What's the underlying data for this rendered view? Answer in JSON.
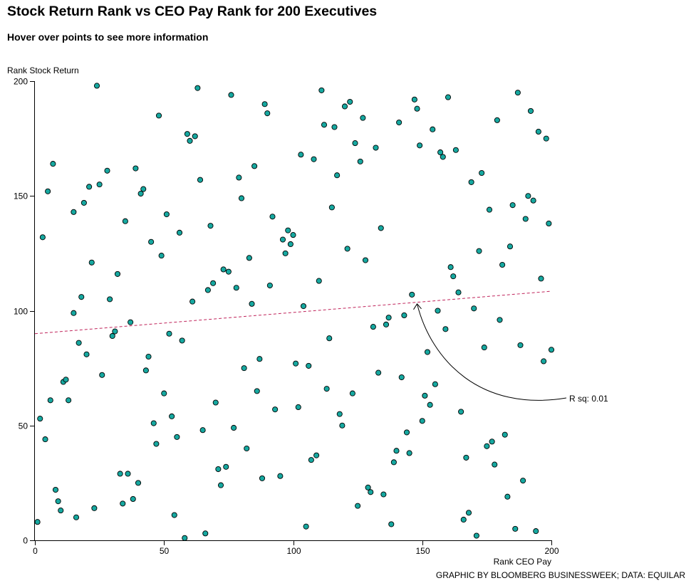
{
  "page": {
    "title": "Stock Return Rank vs CEO Pay Rank for 200 Executives",
    "subtitle": "Hover over points to see more information",
    "credit": "GRAPHIC BY BLOOMBERG BUSINESSWEEK; DATA: EQUILAR"
  },
  "colors": {
    "point_fill": "#16a8a0",
    "point_stroke": "#000000",
    "trend_line": "#c0245b"
  },
  "chart_data": {
    "type": "scatter",
    "title": "Stock Return Rank vs CEO Pay Rank for 200 Executives",
    "xlabel": "Rank CEO Pay",
    "ylabel": "Rank Stock Return",
    "xlim": [
      0,
      200
    ],
    "ylim": [
      0,
      200
    ],
    "x_ticks": [
      0,
      50,
      100,
      150,
      200
    ],
    "y_ticks": [
      0,
      50,
      100,
      150,
      200
    ],
    "grid": false,
    "trend_line": {
      "points": [
        [
          0,
          90
        ],
        [
          200,
          108.5
        ]
      ],
      "style": "dashed"
    },
    "annotation": {
      "label": "R sq: 0.01",
      "points_to": [
        148,
        103
      ]
    },
    "series": [
      {
        "name": "Executives",
        "points": [
          [
            1,
            8
          ],
          [
            2,
            53
          ],
          [
            3,
            132
          ],
          [
            4,
            44
          ],
          [
            5,
            152
          ],
          [
            6,
            61
          ],
          [
            7,
            164
          ],
          [
            8,
            22
          ],
          [
            9,
            17
          ],
          [
            10,
            13
          ],
          [
            11,
            69
          ],
          [
            12,
            70
          ],
          [
            13,
            61
          ],
          [
            15,
            143
          ],
          [
            15,
            99
          ],
          [
            16,
            10
          ],
          [
            17,
            86
          ],
          [
            18,
            106
          ],
          [
            19,
            147
          ],
          [
            20,
            81
          ],
          [
            21,
            154
          ],
          [
            22,
            121
          ],
          [
            23,
            14
          ],
          [
            24,
            198
          ],
          [
            25,
            155
          ],
          [
            26,
            72
          ],
          [
            28,
            161
          ],
          [
            29,
            105
          ],
          [
            30,
            89
          ],
          [
            31,
            91
          ],
          [
            32,
            116
          ],
          [
            33,
            29
          ],
          [
            34,
            16
          ],
          [
            35,
            139
          ],
          [
            36,
            29
          ],
          [
            37,
            95
          ],
          [
            38,
            18
          ],
          [
            39,
            162
          ],
          [
            40,
            25
          ],
          [
            41,
            151
          ],
          [
            42,
            153
          ],
          [
            43,
            74
          ],
          [
            44,
            80
          ],
          [
            45,
            130
          ],
          [
            46,
            51
          ],
          [
            47,
            42
          ],
          [
            48,
            185
          ],
          [
            49,
            124
          ],
          [
            50,
            64
          ],
          [
            51,
            142
          ],
          [
            52,
            90
          ],
          [
            53,
            54
          ],
          [
            54,
            11
          ],
          [
            55,
            45
          ],
          [
            56,
            134
          ],
          [
            57,
            87
          ],
          [
            58,
            1
          ],
          [
            59,
            177
          ],
          [
            60,
            174
          ],
          [
            61,
            104
          ],
          [
            62,
            176
          ],
          [
            63,
            197
          ],
          [
            64,
            157
          ],
          [
            65,
            48
          ],
          [
            66,
            3
          ],
          [
            67,
            109
          ],
          [
            68,
            137
          ],
          [
            69,
            112
          ],
          [
            70,
            60
          ],
          [
            71,
            31
          ],
          [
            72,
            24
          ],
          [
            73,
            118
          ],
          [
            74,
            32
          ],
          [
            75,
            117
          ],
          [
            76,
            194
          ],
          [
            77,
            49
          ],
          [
            78,
            110
          ],
          [
            79,
            158
          ],
          [
            80,
            149
          ],
          [
            81,
            75
          ],
          [
            82,
            40
          ],
          [
            83,
            123
          ],
          [
            84,
            103
          ],
          [
            85,
            163
          ],
          [
            86,
            65
          ],
          [
            87,
            79
          ],
          [
            88,
            27
          ],
          [
            89,
            190
          ],
          [
            90,
            186
          ],
          [
            91,
            111
          ],
          [
            92,
            141
          ],
          [
            93,
            57
          ],
          [
            95,
            28
          ],
          [
            96,
            131
          ],
          [
            97,
            125
          ],
          [
            98,
            135
          ],
          [
            99,
            129
          ],
          [
            100,
            133
          ],
          [
            101,
            77
          ],
          [
            102,
            58
          ],
          [
            103,
            168
          ],
          [
            104,
            102
          ],
          [
            105,
            6
          ],
          [
            106,
            76
          ],
          [
            107,
            35
          ],
          [
            108,
            166
          ],
          [
            109,
            37
          ],
          [
            110,
            113
          ],
          [
            111,
            196
          ],
          [
            112,
            181
          ],
          [
            113,
            66
          ],
          [
            114,
            88
          ],
          [
            115,
            145
          ],
          [
            116,
            180
          ],
          [
            117,
            159
          ],
          [
            118,
            55
          ],
          [
            119,
            50
          ],
          [
            120,
            189
          ],
          [
            121,
            127
          ],
          [
            122,
            191
          ],
          [
            123,
            64
          ],
          [
            124,
            173
          ],
          [
            125,
            15
          ],
          [
            126,
            165
          ],
          [
            127,
            184
          ],
          [
            128,
            122
          ],
          [
            129,
            23
          ],
          [
            130,
            21
          ],
          [
            131,
            93
          ],
          [
            132,
            171
          ],
          [
            133,
            73
          ],
          [
            134,
            136
          ],
          [
            135,
            20
          ],
          [
            136,
            94
          ],
          [
            137,
            97
          ],
          [
            138,
            7
          ],
          [
            139,
            34
          ],
          [
            140,
            39
          ],
          [
            141,
            182
          ],
          [
            142,
            71
          ],
          [
            143,
            98
          ],
          [
            144,
            47
          ],
          [
            145,
            38
          ],
          [
            146,
            107
          ],
          [
            147,
            192
          ],
          [
            148,
            188
          ],
          [
            149,
            172
          ],
          [
            150,
            52
          ],
          [
            151,
            63
          ],
          [
            152,
            82
          ],
          [
            153,
            59
          ],
          [
            154,
            179
          ],
          [
            155,
            68
          ],
          [
            156,
            100
          ],
          [
            157,
            169
          ],
          [
            158,
            167
          ],
          [
            159,
            92
          ],
          [
            160,
            193
          ],
          [
            161,
            119
          ],
          [
            162,
            115
          ],
          [
            163,
            170
          ],
          [
            164,
            108
          ],
          [
            165,
            56
          ],
          [
            166,
            9
          ],
          [
            167,
            36
          ],
          [
            168,
            12
          ],
          [
            169,
            156
          ],
          [
            170,
            101
          ],
          [
            171,
            2
          ],
          [
            172,
            126
          ],
          [
            173,
            160
          ],
          [
            174,
            84
          ],
          [
            175,
            41
          ],
          [
            176,
            144
          ],
          [
            177,
            43
          ],
          [
            178,
            33
          ],
          [
            179,
            183
          ],
          [
            180,
            96
          ],
          [
            181,
            120
          ],
          [
            182,
            46
          ],
          [
            183,
            19
          ],
          [
            184,
            128
          ],
          [
            185,
            146
          ],
          [
            186,
            5
          ],
          [
            187,
            195
          ],
          [
            188,
            85
          ],
          [
            189,
            26
          ],
          [
            190,
            140
          ],
          [
            191,
            150
          ],
          [
            192,
            187
          ],
          [
            193,
            148
          ],
          [
            194,
            4
          ],
          [
            195,
            178
          ],
          [
            196,
            114
          ],
          [
            197,
            78
          ],
          [
            198,
            175
          ],
          [
            199,
            138
          ],
          [
            200,
            83
          ]
        ]
      }
    ]
  }
}
